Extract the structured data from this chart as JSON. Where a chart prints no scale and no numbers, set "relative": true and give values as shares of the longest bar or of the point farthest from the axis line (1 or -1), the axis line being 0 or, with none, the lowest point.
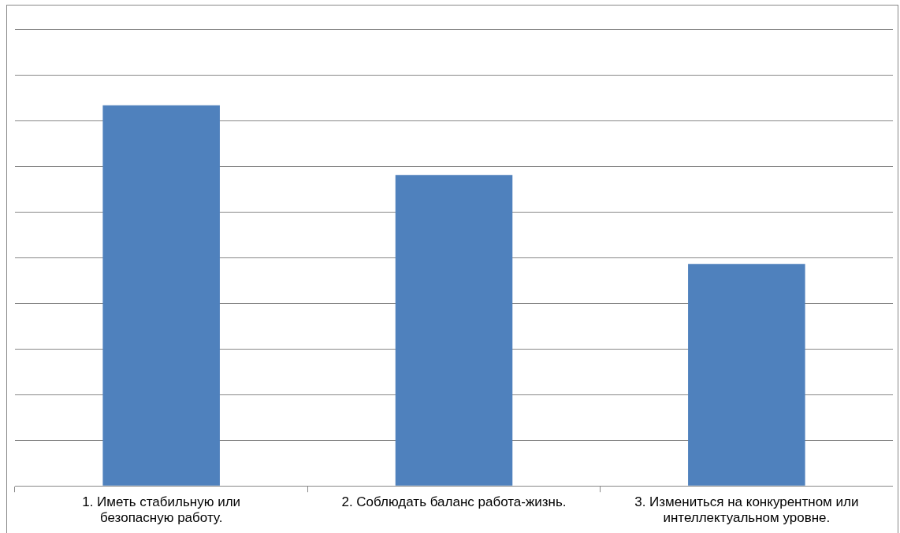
{
  "chart_data": {
    "type": "bar",
    "categories": [
      "1. Иметь стабильную или безопасную работу.",
      "2. Соблюдать баланс работа-жизнь.",
      "3. Измениться на конкурентном или интеллектуальном уровне."
    ],
    "values": [
      1,
      0.817,
      0.583
    ],
    "color": "#4f81bd",
    "relative": true,
    "grid": true,
    "legend": false
  }
}
